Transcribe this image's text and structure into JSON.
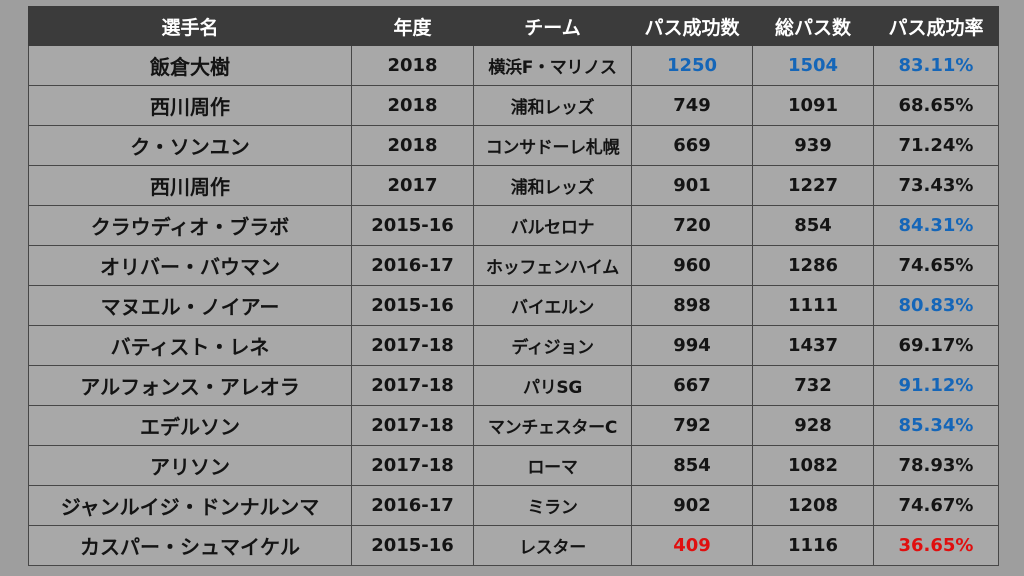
{
  "header": {
    "player": "選手名",
    "season": "年度",
    "team": "チーム",
    "pass_success": "パス成功数",
    "total_passes": "総パス数",
    "pass_rate": "パス成功率"
  },
  "colors": {
    "header_bg": "#3b3b3b",
    "cell_bg": "#a8a8a8",
    "page_bg": "#9e9e9e",
    "highlight_blue": "#1566b8",
    "highlight_red": "#e00f0f"
  },
  "rows": [
    {
      "player": "飯倉大樹",
      "season": "2018",
      "team": "横浜F・マリノス",
      "success": "1250",
      "total": "1504",
      "rate": "83.11%",
      "success_color": "blue",
      "total_color": "blue",
      "rate_color": "blue"
    },
    {
      "player": "西川周作",
      "season": "2018",
      "team": "浦和レッズ",
      "success": "749",
      "total": "1091",
      "rate": "68.65%",
      "success_color": "",
      "total_color": "",
      "rate_color": ""
    },
    {
      "player": "ク・ソンユン",
      "season": "2018",
      "team": "コンサドーレ札幌",
      "success": "669",
      "total": "939",
      "rate": "71.24%",
      "success_color": "",
      "total_color": "",
      "rate_color": ""
    },
    {
      "player": "西川周作",
      "season": "2017",
      "team": "浦和レッズ",
      "success": "901",
      "total": "1227",
      "rate": "73.43%",
      "success_color": "",
      "total_color": "",
      "rate_color": ""
    },
    {
      "player": "クラウディオ・ブラボ",
      "season": "2015-16",
      "team": "バルセロナ",
      "success": "720",
      "total": "854",
      "rate": "84.31%",
      "success_color": "",
      "total_color": "",
      "rate_color": "blue"
    },
    {
      "player": "オリバー・バウマン",
      "season": "2016-17",
      "team": "ホッフェンハイム",
      "success": "960",
      "total": "1286",
      "rate": "74.65%",
      "success_color": "",
      "total_color": "",
      "rate_color": ""
    },
    {
      "player": "マヌエル・ノイアー",
      "season": "2015-16",
      "team": "バイエルン",
      "success": "898",
      "total": "1111",
      "rate": "80.83%",
      "success_color": "",
      "total_color": "",
      "rate_color": "blue"
    },
    {
      "player": "バティスト・レネ",
      "season": "2017-18",
      "team": "ディジョン",
      "success": "994",
      "total": "1437",
      "rate": "69.17%",
      "success_color": "",
      "total_color": "",
      "rate_color": ""
    },
    {
      "player": "アルフォンス・アレオラ",
      "season": "2017-18",
      "team": "パリSG",
      "success": "667",
      "total": "732",
      "rate": "91.12%",
      "success_color": "",
      "total_color": "",
      "rate_color": "blue"
    },
    {
      "player": "エデルソン",
      "season": "2017-18",
      "team": "マンチェスターC",
      "success": "792",
      "total": "928",
      "rate": "85.34%",
      "success_color": "",
      "total_color": "",
      "rate_color": "blue"
    },
    {
      "player": "アリソン",
      "season": "2017-18",
      "team": "ローマ",
      "success": "854",
      "total": "1082",
      "rate": "78.93%",
      "success_color": "",
      "total_color": "",
      "rate_color": ""
    },
    {
      "player": "ジャンルイジ・ドンナルンマ",
      "season": "2016-17",
      "team": "ミラン",
      "success": "902",
      "total": "1208",
      "rate": "74.67%",
      "success_color": "",
      "total_color": "",
      "rate_color": ""
    },
    {
      "player": "カスパー・シュマイケル",
      "season": "2015-16",
      "team": "レスター",
      "success": "409",
      "total": "1116",
      "rate": "36.65%",
      "success_color": "red",
      "total_color": "",
      "rate_color": "red"
    }
  ]
}
